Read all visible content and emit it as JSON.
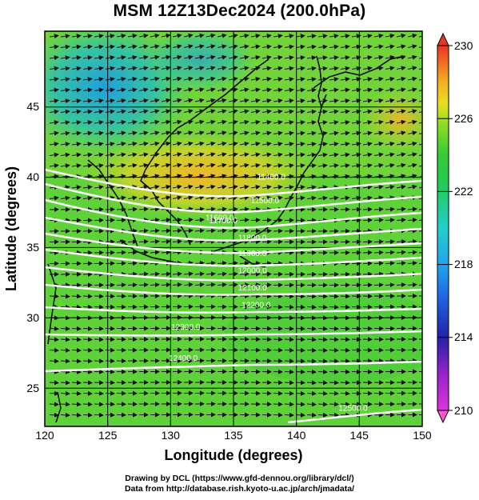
{
  "title": "MSM 12Z13Dec2024 (200.0hPa)",
  "chart_data": {
    "type": "heatmap",
    "title": "MSM 12Z13Dec2024 (200.0hPa)",
    "xlabel": "Longitude (degrees)",
    "ylabel": "Latitude  (degrees)",
    "xlim": [
      120,
      150
    ],
    "ylim": [
      22.5,
      47.8
    ],
    "xticks": [
      "120",
      "125",
      "130",
      "135",
      "140",
      "145",
      "150"
    ],
    "yticks": [
      "25",
      "30",
      "35",
      "40",
      "45"
    ],
    "colorbar": {
      "min": 210,
      "max": 230,
      "ticks": [
        "230",
        "226",
        "222",
        "218",
        "214",
        "210"
      ]
    },
    "contours": [
      {
        "label": "11400.0",
        "lon": 138.0,
        "lat": 38.3
      },
      {
        "label": "11500.0",
        "lon": 137.5,
        "lat": 36.8
      },
      {
        "label": "11600.0",
        "lon": 133.9,
        "lat": 35.7
      },
      {
        "label": "11700.0",
        "lon": 134.2,
        "lat": 35.5
      },
      {
        "label": "11800.0",
        "lon": 136.5,
        "lat": 34.4
      },
      {
        "label": "11900.0",
        "lon": 136.5,
        "lat": 33.4
      },
      {
        "label": "12000.0",
        "lon": 136.5,
        "lat": 32.3
      },
      {
        "label": "12100.0",
        "lon": 136.5,
        "lat": 31.2
      },
      {
        "label": "12200.0",
        "lon": 136.8,
        "lat": 30.1
      },
      {
        "label": "12300.0",
        "lon": 131.2,
        "lat": 28.7
      },
      {
        "label": "12400.0",
        "lon": 131.0,
        "lat": 26.7
      },
      {
        "label": "12500.0",
        "lon": 144.5,
        "lat": 23.5
      }
    ],
    "grid": true
  },
  "credits": {
    "line1": "Drawing by DCL (https://www.gfd-dennou.org/library/dcl/)",
    "line2": "Data from http://database.rish.kyoto-u.ac.jp/arch/jmadata/"
  }
}
